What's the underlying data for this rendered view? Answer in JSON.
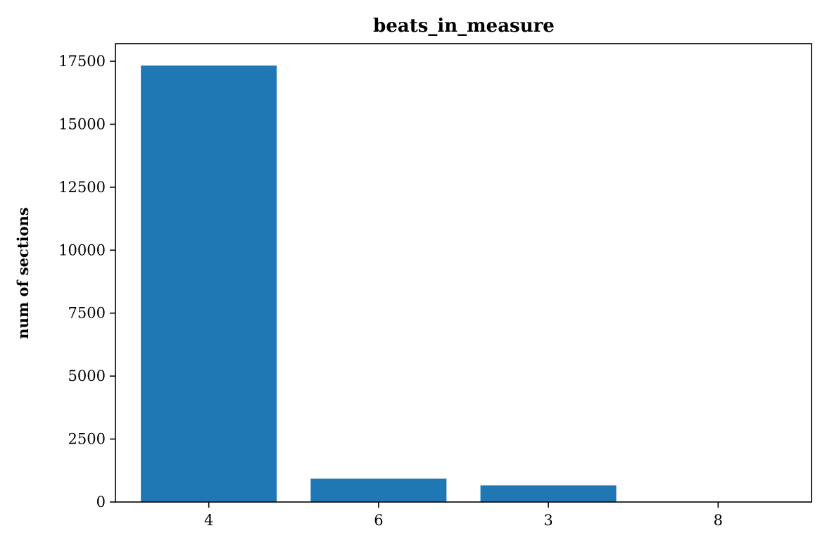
{
  "chart_data": {
    "type": "bar",
    "title": "beats_in_measure",
    "xlabel": "",
    "ylabel": "num of sections",
    "categories": [
      "4",
      "6",
      "3",
      "8"
    ],
    "values": [
      17330,
      930,
      660,
      10
    ],
    "ylim": [
      0,
      18200
    ],
    "yticks": [
      0,
      2500,
      5000,
      7500,
      10000,
      12500,
      15000,
      17500
    ],
    "ytick_labels": [
      "0",
      "2500",
      "5000",
      "7500",
      "10000",
      "12500",
      "15000",
      "17500"
    ],
    "grid": false,
    "bar_color": "#1f77b4"
  }
}
